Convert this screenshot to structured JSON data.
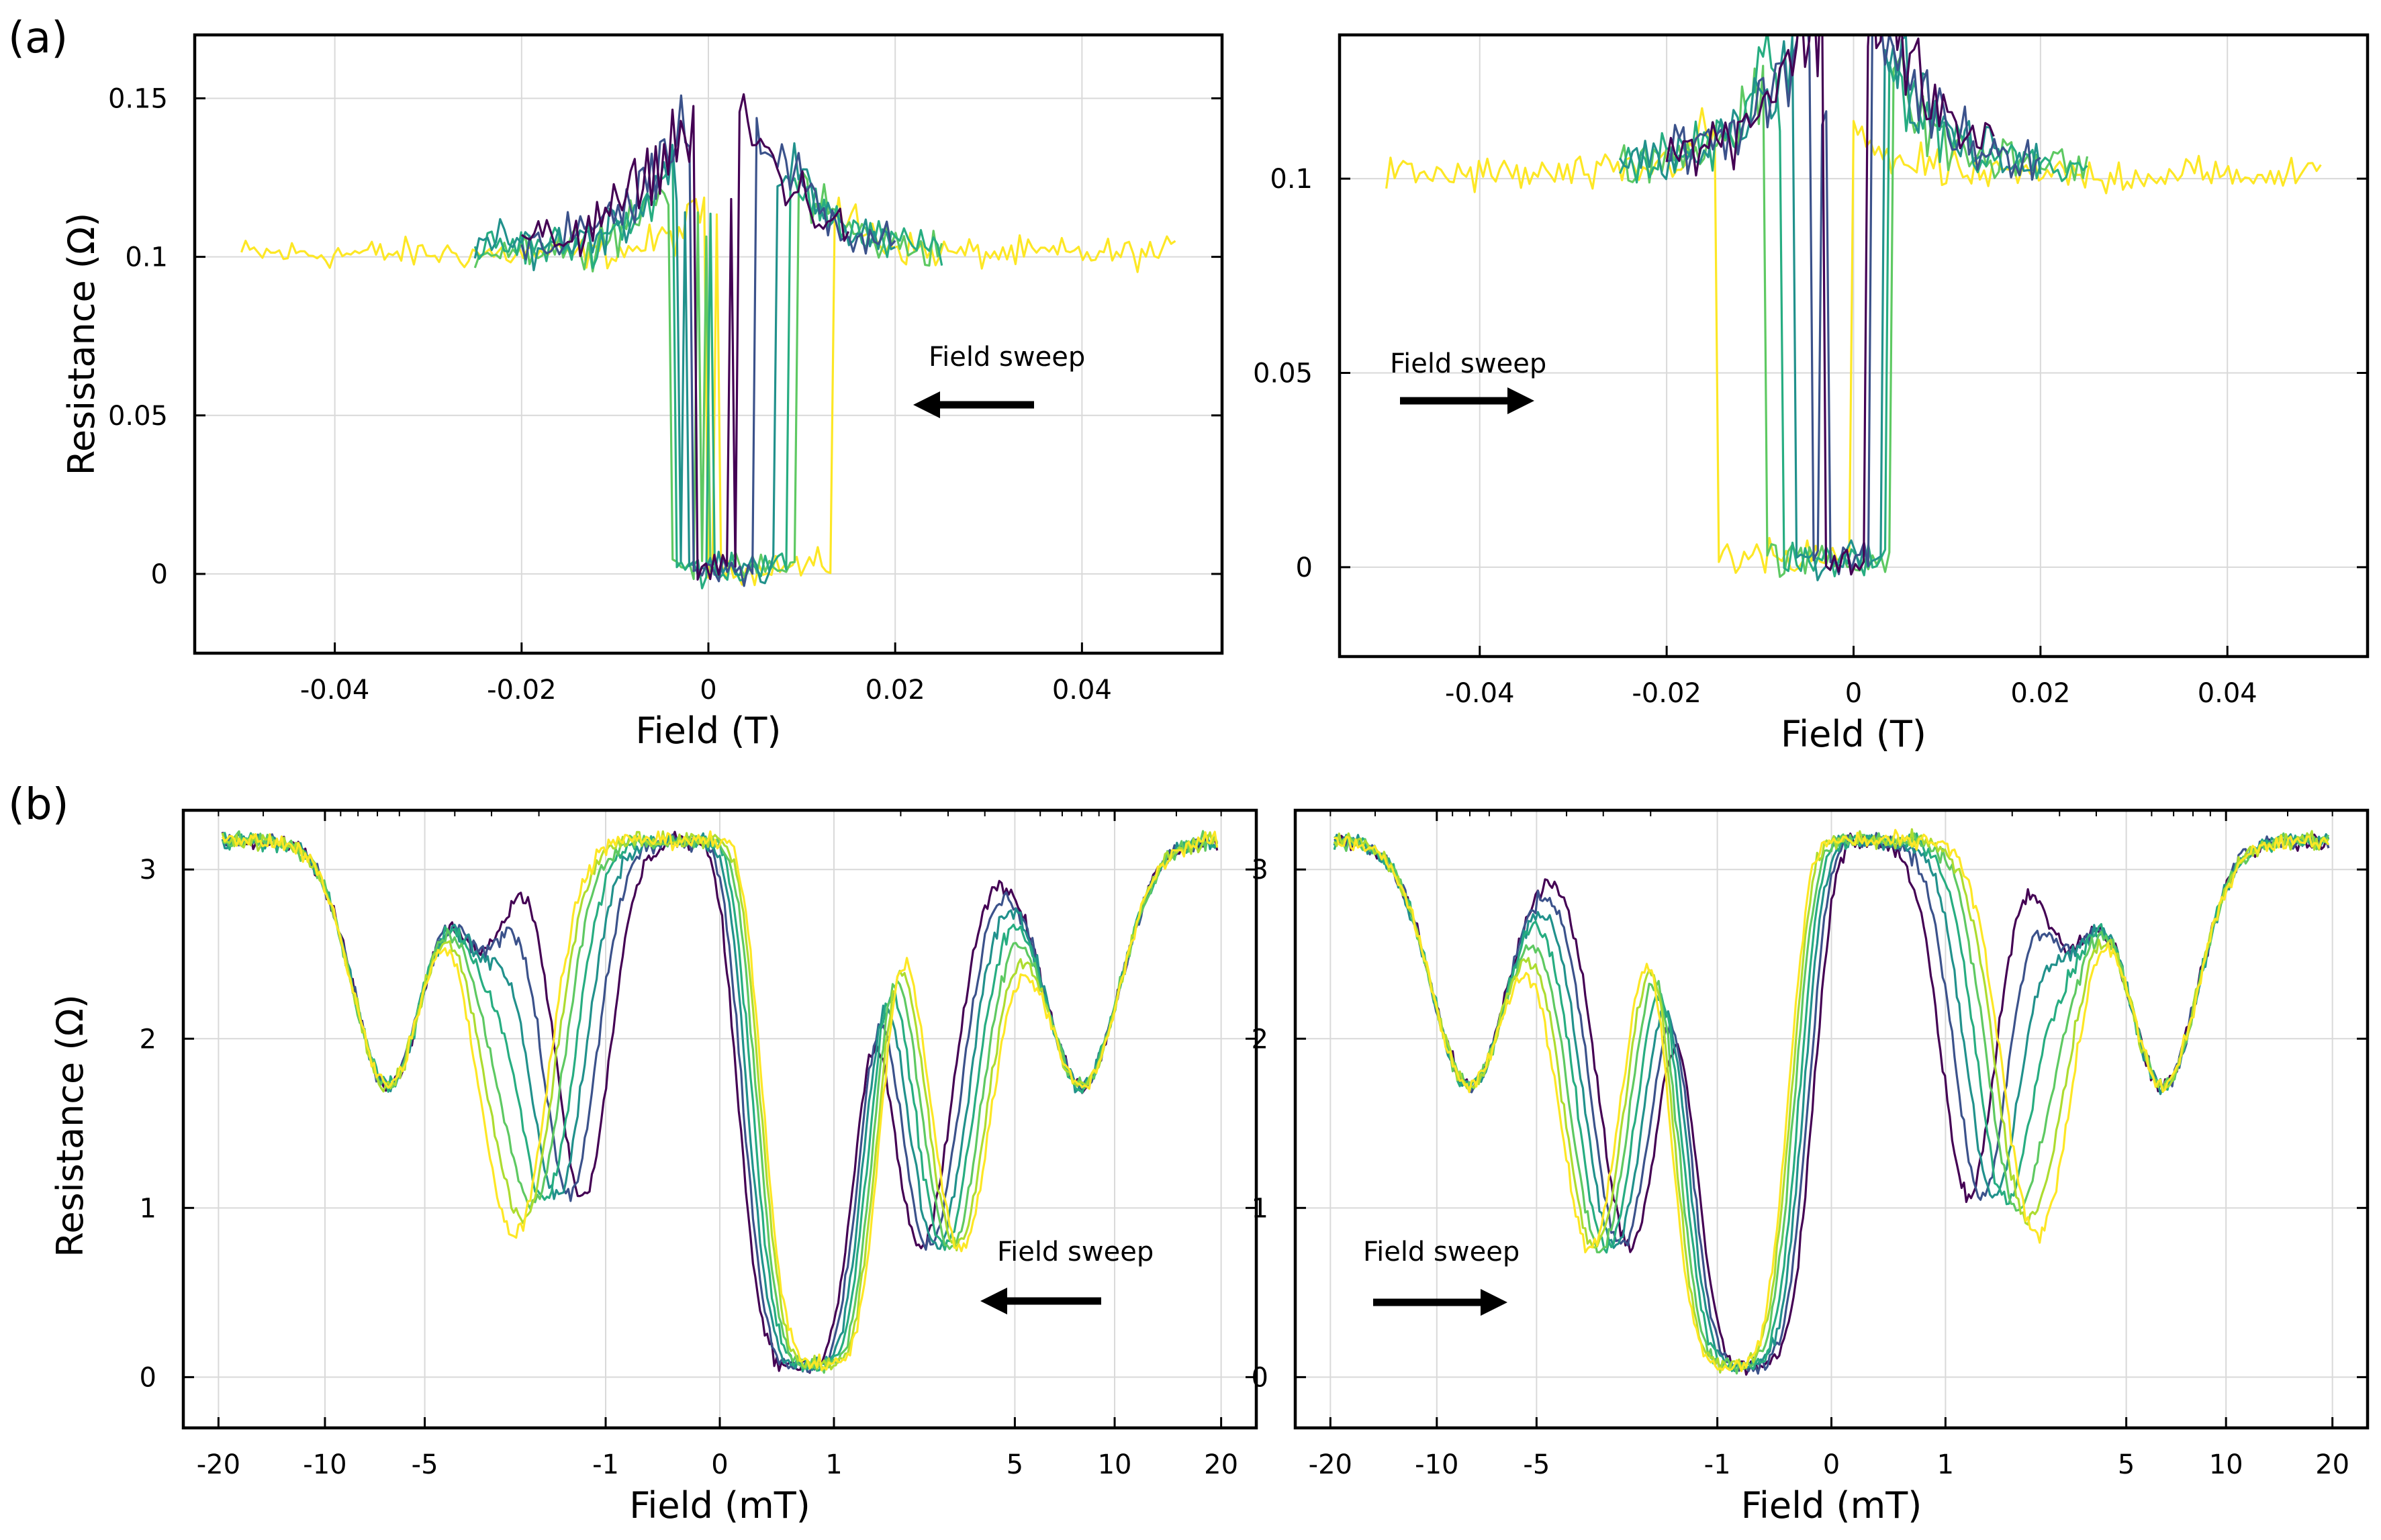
{
  "figure": {
    "panel_labels": [
      "(a)",
      "(b)"
    ],
    "colormap": [
      "#440154",
      "#3b528b",
      "#21918c",
      "#27ad81",
      "#5ec962",
      "#addc30",
      "#fde725"
    ]
  },
  "chart_data": [
    {
      "id": "a-left",
      "type": "line",
      "xlabel": "Field (T)",
      "ylabel": "Resistance (Ω)",
      "xlim": [
        -0.055,
        0.055
      ],
      "ylim": [
        -0.025,
        0.17
      ],
      "xticks": [
        -0.04,
        -0.02,
        0,
        0.02,
        0.04
      ],
      "xtick_labels": [
        "-0.04",
        "-0.02",
        "0",
        "0.02",
        "0.04"
      ],
      "yticks": [
        0,
        0.05,
        0.1,
        0.15
      ],
      "ytick_labels": [
        "0",
        "0.05",
        "0.1",
        "0.15"
      ],
      "grid": true,
      "annotation": {
        "text": "Field sweep",
        "arrow": "left"
      },
      "series": [
        {
          "color_index": 6,
          "range": [
            -0.05,
            0.05
          ],
          "baseline": 0.101,
          "low": [
            0.0,
            0.0135
          ],
          "noise": 0.006
        },
        {
          "color_index": 4,
          "range": [
            -0.025,
            0.025
          ],
          "baseline": 0.103,
          "low": [
            -0.004,
            0.0095
          ],
          "noise": 0.008
        },
        {
          "color_index": 3,
          "range": [
            -0.025,
            0.025
          ],
          "baseline": 0.103,
          "low": [
            -0.0035,
            0.0085
          ],
          "noise": 0.008
        },
        {
          "color_index": 2,
          "range": [
            -0.025,
            0.02
          ],
          "baseline": 0.104,
          "low": [
            -0.003,
            0.007
          ],
          "noise": 0.008
        },
        {
          "color_index": 1,
          "range": [
            -0.02,
            0.02
          ],
          "baseline": 0.105,
          "low": [
            -0.002,
            0.005
          ],
          "noise": 0.008
        },
        {
          "color_index": 0,
          "range": [
            -0.02,
            0.015
          ],
          "baseline": 0.105,
          "low": [
            -0.0015,
            0.003
          ],
          "noise": 0.008
        }
      ]
    },
    {
      "id": "a-right",
      "type": "line",
      "xlabel": "Field (T)",
      "ylabel": "",
      "xlim": [
        -0.055,
        0.055
      ],
      "ylim": [
        -0.023,
        0.137
      ],
      "xticks": [
        -0.04,
        -0.02,
        0,
        0.02,
        0.04
      ],
      "xtick_labels": [
        "-0.04",
        "-0.02",
        "0",
        "0.02",
        "0.04"
      ],
      "yticks": [
        0,
        0.05,
        0.1
      ],
      "ytick_labels": [
        "0",
        "0.05",
        "0.1"
      ],
      "grid": true,
      "annotation": {
        "text": "Field sweep",
        "arrow": "right"
      },
      "series": [
        {
          "color_index": 6,
          "range": [
            -0.05,
            0.05
          ],
          "baseline": 0.101,
          "low": [
            -0.0145,
            0.0
          ],
          "noise": 0.006
        },
        {
          "color_index": 4,
          "range": [
            -0.025,
            0.025
          ],
          "baseline": 0.104,
          "low": [
            -0.0095,
            0.004
          ],
          "noise": 0.008
        },
        {
          "color_index": 3,
          "range": [
            -0.025,
            0.025
          ],
          "baseline": 0.104,
          "low": [
            -0.008,
            0.0035
          ],
          "noise": 0.008
        },
        {
          "color_index": 2,
          "range": [
            -0.025,
            0.02
          ],
          "baseline": 0.105,
          "low": [
            -0.0065,
            0.003
          ],
          "noise": 0.008
        },
        {
          "color_index": 1,
          "range": [
            -0.02,
            0.02
          ],
          "baseline": 0.106,
          "low": [
            -0.0045,
            0.002
          ],
          "noise": 0.008
        },
        {
          "color_index": 0,
          "range": [
            -0.02,
            0.015
          ],
          "baseline": 0.106,
          "low": [
            -0.003,
            0.0015
          ],
          "noise": 0.008
        }
      ]
    },
    {
      "id": "b-left",
      "type": "line",
      "xscale": "symlog",
      "xlabel": "Field (mT)",
      "ylabel": "Resistance (Ω)",
      "xlim": [
        -25,
        25
      ],
      "ylim": [
        -0.3,
        3.35
      ],
      "xticks": [
        -20,
        -10,
        -5,
        -1,
        0,
        1,
        5,
        10,
        20
      ],
      "xtick_labels": [
        "-20",
        "-10",
        "-5",
        "-1",
        "0",
        "1",
        "5",
        "10",
        "20"
      ],
      "yticks": [
        0,
        1,
        2,
        3
      ],
      "ytick_labels": [
        "0",
        "1",
        "2",
        "3"
      ],
      "grid": true,
      "annotation": {
        "text": "Field sweep",
        "arrow": "left"
      },
      "direction": "down",
      "series": [
        {
          "color_index": 0,
          "shift": 0.0
        },
        {
          "color_index": 1,
          "shift": 0.12
        },
        {
          "color_index": 2,
          "shift": 0.24
        },
        {
          "color_index": 3,
          "shift": 0.36
        },
        {
          "color_index": 4,
          "shift": 0.48
        },
        {
          "color_index": 5,
          "shift": 0.58
        },
        {
          "color_index": 6,
          "shift": 0.66
        }
      ]
    },
    {
      "id": "b-right",
      "type": "line",
      "xscale": "symlog",
      "xlabel": "Field (mT)",
      "ylabel": "",
      "xlim": [
        -25,
        25
      ],
      "ylim": [
        -0.3,
        3.35
      ],
      "xticks": [
        -20,
        -10,
        -5,
        -1,
        0,
        1,
        5,
        10,
        20
      ],
      "xtick_labels": [
        "-20",
        "-10",
        "-5",
        "-1",
        "0",
        "1",
        "5",
        "10",
        "20"
      ],
      "yticks": [
        0,
        1,
        2,
        3
      ],
      "ytick_labels": [
        "0",
        "1",
        "2",
        "3"
      ],
      "grid": true,
      "annotation": {
        "text": "Field sweep",
        "arrow": "right"
      },
      "direction": "up",
      "series": [
        {
          "color_index": 0,
          "shift": 0.0
        },
        {
          "color_index": 1,
          "shift": 0.12
        },
        {
          "color_index": 2,
          "shift": 0.24
        },
        {
          "color_index": 3,
          "shift": 0.36
        },
        {
          "color_index": 4,
          "shift": 0.48
        },
        {
          "color_index": 5,
          "shift": 0.58
        },
        {
          "color_index": 6,
          "shift": 0.66
        }
      ]
    }
  ]
}
